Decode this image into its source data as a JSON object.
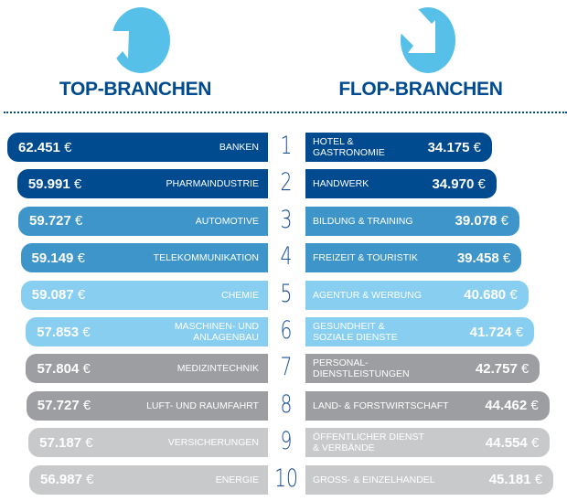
{
  "header": {
    "top_title": "TOP-BRANCHEN",
    "flop_title": "FLOP-BRANCHEN",
    "top_icon": "arrow-up-right-circle-icon",
    "flop_icon": "arrow-down-right-circle-icon",
    "icon_color": "#56c0e8"
  },
  "chart_data": {
    "type": "bar",
    "currency": "€",
    "ranks": [
      "1",
      "2",
      "3",
      "4",
      "5",
      "6",
      "7",
      "8",
      "9",
      "10"
    ],
    "colors": [
      "#004a8f",
      "#004a8f",
      "#3d95c9",
      "#3d95c9",
      "#87cef0",
      "#87cef0",
      "#9d9ea1",
      "#9d9ea1",
      "#c8c9cb",
      "#c8c9cb"
    ],
    "series": [
      {
        "name": "TOP-BRANCHEN",
        "categories": [
          "BANKEN",
          "PHARMAINDUSTRIE",
          "AUTOMOTIVE",
          "TELEKOMMUNIKATION",
          "CHEMIE",
          "MASCHINEN- UND\nANLAGENBAU",
          "MEDIZINTECHNIK",
          "LUFT- UND RAUMFAHRT",
          "VERSICHERUNGEN",
          "ENERGIE"
        ],
        "values": [
          62451,
          59991,
          59727,
          59149,
          59087,
          57853,
          57804,
          57727,
          57187,
          56987
        ],
        "labels": [
          "62.451",
          "59.991",
          "59.727",
          "59.149",
          "59.087",
          "57.853",
          "57.804",
          "57.727",
          "57.187",
          "56.987"
        ]
      },
      {
        "name": "FLOP-BRANCHEN",
        "categories": [
          "HOTEL &\nGASTRONOMIE",
          "HANDWERK",
          "BILDUNG & TRAINING",
          "FREIZEIT & TOURISTIK",
          "AGENTUR & WERBUNG",
          "GESUNDHEIT &\nSOZIALE DIENSTE",
          "PERSONAL-\nDIENSTLEISTUNGEN",
          "LAND- & FORSTWIRTSCHAFT",
          "ÖFFENTLICHER DIENST\n& VERBÄNDE",
          "GROSS- & EINZELHANDEL"
        ],
        "values": [
          34175,
          34970,
          39078,
          39458,
          40680,
          41724,
          42757,
          44462,
          44554,
          45181
        ],
        "labels": [
          "34.175",
          "34.970",
          "39.078",
          "39.458",
          "40.680",
          "41.724",
          "42.757",
          "44.462",
          "44.554",
          "45.181"
        ]
      }
    ]
  }
}
